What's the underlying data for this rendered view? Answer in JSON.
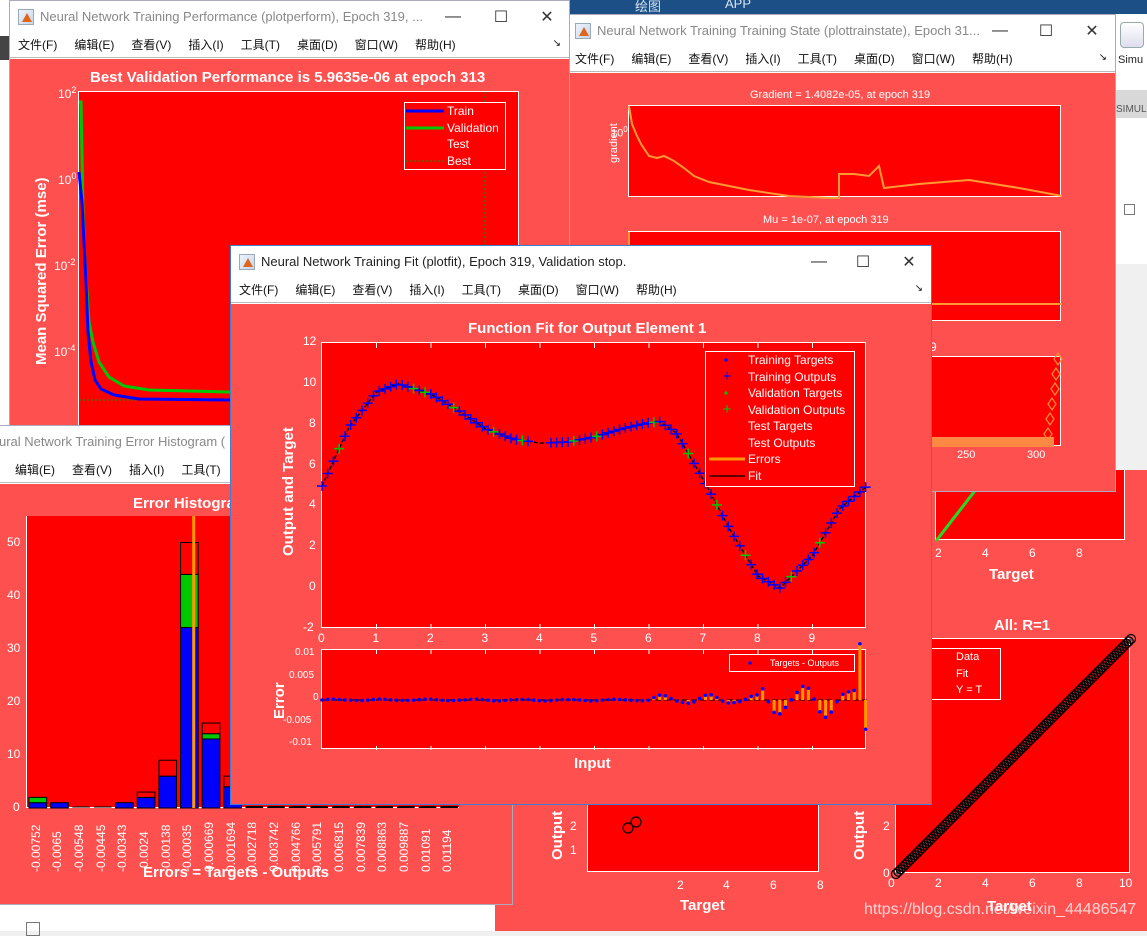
{
  "background": {
    "ribbon_tabs": [
      "绘图",
      "APP"
    ],
    "simulink_label": "Simu",
    "simulink_section": "SIMUL"
  },
  "menu_items": [
    "文件(F)",
    "编辑(E)",
    "查看(V)",
    "插入(I)",
    "工具(T)",
    "桌面(D)",
    "窗口(W)",
    "帮助(H)"
  ],
  "window_controls": {
    "minimize": "—",
    "maximize": "☐",
    "close": "✕"
  },
  "windows": {
    "perform": {
      "title": "Neural Network Training Performance (plotperform), Epoch 319, ...",
      "chart_title": "Best Validation Performance is 5.9635e-06 at epoch 313",
      "ylabel": "Mean Squared Error  (mse)",
      "yticks": [
        "10",
        "10",
        "10",
        "10"
      ],
      "yexp": [
        "2",
        "0",
        "-2",
        "-4"
      ],
      "legend": [
        "Train",
        "Validation",
        "Test",
        "Best"
      ]
    },
    "trainstate": {
      "title": "Neural Network Training Training State (plottrainstate), Epoch 31...",
      "gradient_title": "Gradient = 1.4082e-05, at epoch 319",
      "gradient_ylabel": "gradient",
      "gradient_ytick": "10",
      "gradient_yexp": "0",
      "mu_title": "Mu = 1e-07, at epoch 319",
      "val_title_fragment": "9",
      "val_xticks": [
        "250",
        "300"
      ]
    },
    "histogram": {
      "title": "ural Network Training Error Histogram (",
      "menu_items": [
        "编辑(E)",
        "查看(V)",
        "插入(I)",
        "工具(T)"
      ],
      "chart_title": "Error Histogram",
      "xlabel": "Errors = Targets - Outputs",
      "yticks": [
        "50",
        "40",
        "30",
        "20",
        "10",
        "0"
      ],
      "bins": [
        "-0.00752",
        "-0.0065",
        "-0.00548",
        "-0.00445",
        "-0.00343",
        "-0.0024",
        "-0.00138",
        "-0.00035",
        "0.000669",
        "0.001694",
        "0.002718",
        "0.003742",
        "0.004766",
        "0.005791",
        "0.006815",
        "0.007839",
        "0.008863",
        "0.009887",
        "0.01091",
        "0.01194"
      ]
    },
    "regression": {
      "all_title": "All: R=1",
      "xlabel": "Target",
      "ylabel": "Output",
      "xticks_all": [
        "0",
        "2",
        "4",
        "6",
        "8",
        "10"
      ],
      "yticks_all": [
        "0",
        "2"
      ],
      "xticks_partial": [
        "2",
        "4",
        "6",
        "8"
      ],
      "yticks_partial": [
        "2",
        "1"
      ],
      "legend": [
        "Data",
        "Fit",
        "Y = T"
      ],
      "upper_xticks": [
        "2",
        "4",
        "6",
        "8"
      ],
      "upper_xlabel": "Target"
    },
    "fit": {
      "title": "Neural Network Training Fit (plotfit), Epoch 319, Validation stop.",
      "chart_title": "Function Fit for Output Element 1",
      "ylabel": "Output and Target",
      "xlabel": "Input",
      "error_ylabel": "Error",
      "yticks": [
        "12",
        "10",
        "8",
        "6",
        "4",
        "2",
        "0",
        "-2"
      ],
      "xticks": [
        "0",
        "1",
        "2",
        "3",
        "4",
        "5",
        "6",
        "7",
        "8",
        "9"
      ],
      "error_yticks": [
        "0.01",
        "0.005",
        "0",
        "-0.005",
        "-0.01"
      ],
      "legend": [
        "Training Targets",
        "Training Outputs",
        "Validation Targets",
        "Validation Outputs",
        "Test Targets",
        "Test Outputs",
        "Errors",
        "Fit"
      ],
      "error_legend": "Targets - Outputs"
    }
  },
  "watermark": "https://blog.csdn.net/weixin_44486547",
  "colors": {
    "figure_bg": "#ff5050",
    "axes_bg": "#ff0000",
    "train": "#0000ff",
    "validation": "#00c800",
    "errors": "#ff9900",
    "fit": "#000000"
  },
  "chart_data": [
    {
      "type": "line",
      "title": "Best Validation Performance is 5.9635e-06 at epoch 313",
      "ylabel": "Mean Squared Error  (mse)",
      "yscale": "log",
      "ylim": [
        1e-06,
        100
      ],
      "series": [
        {
          "name": "Train",
          "x": [
            0,
            2,
            5,
            10,
            20,
            40,
            100,
            313
          ],
          "y": [
            30,
            0.3,
            0.003,
            2e-05,
            6e-06,
            5e-06,
            5e-06,
            5e-06
          ]
        },
        {
          "name": "Validation",
          "x": [
            0,
            2,
            5,
            10,
            20,
            40,
            100,
            313
          ],
          "y": [
            30,
            0.1,
            0.01,
            0.0001,
            1e-05,
            7e-06,
            6e-06,
            6e-06
          ]
        }
      ],
      "legend": [
        "Train",
        "Validation",
        "Test",
        "Best"
      ]
    },
    {
      "type": "line",
      "title": "Function Fit for Output Element 1",
      "xlabel": "Input",
      "ylabel": "Output and Target",
      "xlim": [
        0,
        10
      ],
      "ylim": [
        -2,
        12
      ],
      "x": [
        0,
        0.5,
        1,
        1.4,
        2,
        2.5,
        3,
        3.5,
        4,
        4.5,
        5,
        5.5,
        6,
        6.2,
        6.5,
        7,
        7.5,
        8,
        8.4,
        9,
        9.5,
        10
      ],
      "series": [
        {
          "name": "Fit",
          "values": [
            5,
            7.9,
            9.6,
            10,
            9.5,
            8.7,
            7.8,
            7.3,
            7.1,
            7.15,
            7.4,
            7.8,
            8.1,
            8.15,
            7.6,
            5.3,
            2.8,
            0.6,
            0,
            1.6,
            3.9,
            5
          ]
        }
      ]
    },
    {
      "type": "bar",
      "title": "Error Histogram",
      "xlabel": "Errors = Targets - Outputs",
      "categories": [
        "-0.00752",
        "-0.0065",
        "-0.00548",
        "-0.00445",
        "-0.00343",
        "-0.0024",
        "-0.00138",
        "-0.00035",
        "0.000669",
        "0.001694"
      ],
      "series": [
        {
          "name": "Training",
          "values": [
            1,
            1,
            0,
            0,
            1,
            2,
            6,
            34,
            13,
            4
          ]
        },
        {
          "name": "Validation",
          "values": [
            1,
            0,
            0,
            0,
            0,
            0,
            0,
            10,
            1,
            0
          ]
        },
        {
          "name": "Test",
          "values": [
            0,
            0,
            0,
            0,
            0,
            1,
            3,
            6,
            2,
            2
          ]
        }
      ],
      "ylim": [
        0,
        55
      ]
    },
    {
      "type": "scatter",
      "title": "All: R=1",
      "xlabel": "Target",
      "ylabel": "Output",
      "xlim": [
        0,
        10
      ],
      "ylim": [
        0,
        10
      ]
    }
  ]
}
